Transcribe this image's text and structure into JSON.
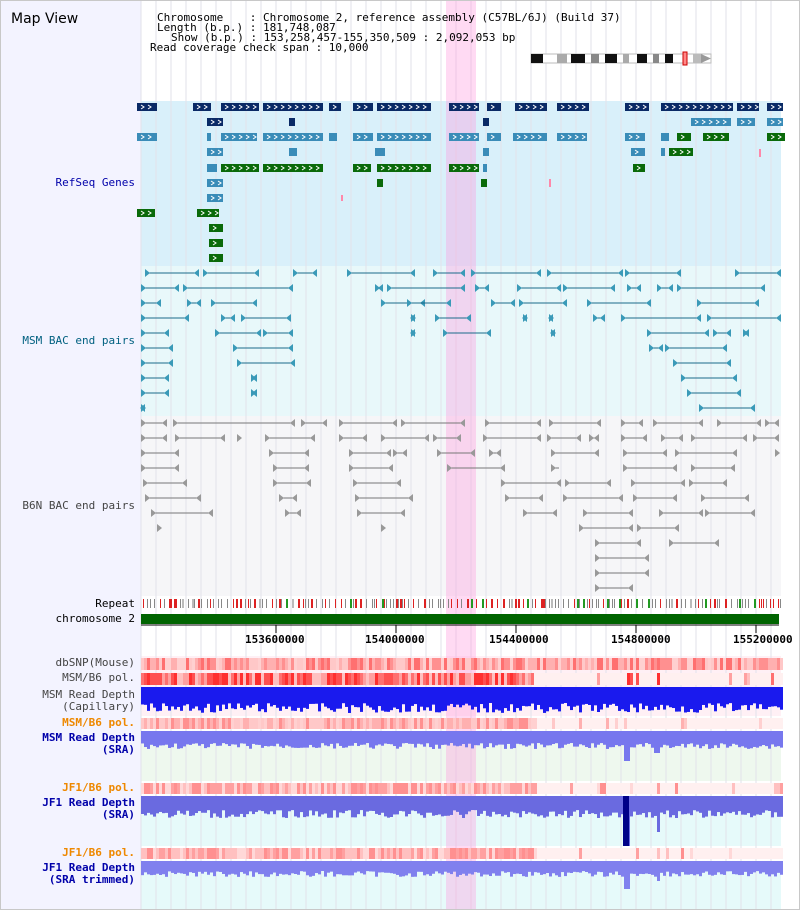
{
  "title": "Map View",
  "header": {
    "chromosome_line": "Chromosome    : Chromosome 2, reference assembly (C57BL/6J) (Build 37)",
    "length_line": "Length (b.p.) : 181,748,087",
    "show_line": "Show (b.p.) : 153,258,457-155,350,509 : 2,092,053 bp",
    "coverage_line": "Read coverage check span : 10,000"
  },
  "tracks": {
    "refseq": "RefSeq Genes",
    "msm_bac": "MSM BAC end pairs",
    "b6n_bac": "B6N BAC end pairs",
    "repeat": "Repeat",
    "chromosome": "chromosome 2",
    "dbsnp": "dbSNP(Mouse)",
    "msm_b6_pol_1": "MSM/B6 pol.",
    "msm_read_depth_cap_1": "MSM Read Depth",
    "msm_read_depth_cap_2": "(Capillary)",
    "msm_b6_pol_2": "MSM/B6 pol.",
    "msm_read_depth_sra_1": "MSM Read Depth",
    "msm_read_depth_sra_2": "(SRA)",
    "jf1_b6_pol_1": "JF1/B6 pol.",
    "jf1_read_depth_sra_1": "JF1 Read Depth",
    "jf1_read_depth_sra_2": "(SRA)",
    "jf1_b6_pol_2": "JF1/B6 pol.",
    "jf1_read_depth_trim_1": "JF1 Read Depth",
    "jf1_read_depth_trim_2": "(SRA trimmed)"
  },
  "axis_ticks": [
    "153600000",
    "154000000",
    "154400000",
    "154800000",
    "155200000"
  ],
  "colors": {
    "gene_dark": "#0a2a66",
    "gene_mid": "#3a8cb8",
    "gene_green": "#0a6a0a",
    "msm_line": "#1a6a8a",
    "b6n_line": "#777777",
    "chrom_bar": "#006400",
    "label_blue": "#0000aa",
    "label_orange": "#ee8800",
    "label_msm": "#006080"
  }
}
